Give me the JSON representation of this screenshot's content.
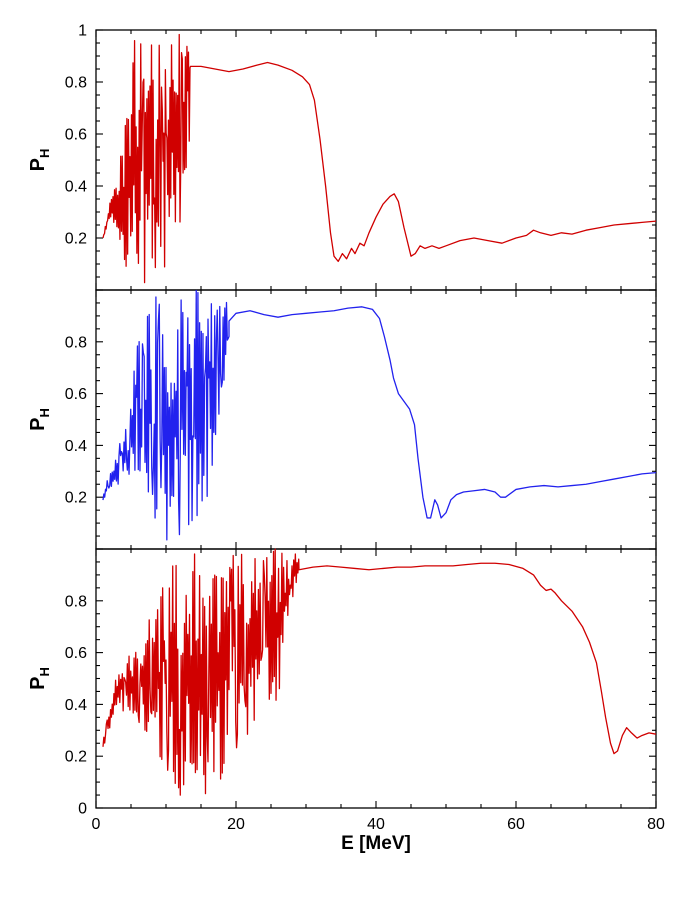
{
  "chart_data": [
    {
      "type": "line",
      "xlabel": "",
      "ylabel": "P",
      "ylabel_sub": "H",
      "xlim": [
        0,
        80
      ],
      "ylim": [
        0,
        1
      ],
      "ytick_labels": [
        "0.2",
        "0.4",
        "0.6",
        "0.8",
        "1"
      ],
      "ytick_values": [
        0.2,
        0.4,
        0.6,
        0.8,
        1.0
      ],
      "series": [
        {
          "color": "#d00000",
          "noisy": {
            "x_start": 1.0,
            "x_end": 13.5,
            "step": 0.11,
            "envelope": [
              [
                1,
                0.2,
                0.2
              ],
              [
                2,
                0.25,
                0.34
              ],
              [
                3,
                0.22,
                0.45
              ],
              [
                4,
                0.12,
                0.6
              ],
              [
                5,
                0.02,
                0.95
              ],
              [
                6,
                0.02,
                0.98
              ],
              [
                8,
                0.03,
                1.0
              ],
              [
                10,
                0.05,
                1.0
              ],
              [
                12,
                0.1,
                1.0
              ],
              [
                13.5,
                0.4,
                1.0
              ]
            ]
          },
          "smooth": [
            [
              1.0,
              0.16
            ],
            [
              2.0,
              0.28
            ],
            [
              13.5,
              0.86
            ],
            [
              15,
              0.86
            ],
            [
              17,
              0.85
            ],
            [
              19,
              0.84
            ],
            [
              21,
              0.85
            ],
            [
              23,
              0.865
            ],
            [
              24.5,
              0.875
            ],
            [
              26,
              0.865
            ],
            [
              28,
              0.845
            ],
            [
              29.5,
              0.82
            ],
            [
              30.5,
              0.79
            ],
            [
              31.2,
              0.73
            ],
            [
              32,
              0.58
            ],
            [
              32.8,
              0.4
            ],
            [
              33.5,
              0.22
            ],
            [
              34,
              0.13
            ],
            [
              34.6,
              0.11
            ],
            [
              35.2,
              0.14
            ],
            [
              35.8,
              0.12
            ],
            [
              36.5,
              0.16
            ],
            [
              37,
              0.14
            ],
            [
              37.7,
              0.18
            ],
            [
              38.3,
              0.17
            ],
            [
              39,
              0.22
            ],
            [
              40,
              0.28
            ],
            [
              41,
              0.33
            ],
            [
              42,
              0.36
            ],
            [
              42.6,
              0.37
            ],
            [
              43.2,
              0.34
            ],
            [
              44,
              0.24
            ],
            [
              45,
              0.13
            ],
            [
              45.6,
              0.14
            ],
            [
              46.3,
              0.17
            ],
            [
              47,
              0.16
            ],
            [
              48,
              0.17
            ],
            [
              49,
              0.16
            ],
            [
              50,
              0.17
            ],
            [
              52,
              0.19
            ],
            [
              54,
              0.2
            ],
            [
              56,
              0.19
            ],
            [
              58,
              0.18
            ],
            [
              60,
              0.2
            ],
            [
              61.5,
              0.21
            ],
            [
              62.5,
              0.23
            ],
            [
              63.5,
              0.22
            ],
            [
              65,
              0.21
            ],
            [
              66.5,
              0.22
            ],
            [
              68,
              0.215
            ],
            [
              70,
              0.23
            ],
            [
              72,
              0.24
            ],
            [
              74,
              0.25
            ],
            [
              76,
              0.255
            ],
            [
              78,
              0.26
            ],
            [
              80,
              0.265
            ]
          ]
        }
      ]
    },
    {
      "type": "line",
      "xlabel": "",
      "ylabel": "P",
      "ylabel_sub": "H",
      "xlim": [
        0,
        80
      ],
      "ylim": [
        0,
        1
      ],
      "ytick_labels": [
        "0.2",
        "0.4",
        "0.6",
        "0.8"
      ],
      "ytick_values": [
        0.2,
        0.4,
        0.6,
        0.8
      ],
      "series": [
        {
          "color": "#2222ee",
          "noisy": {
            "x_start": 1.0,
            "x_end": 19.0,
            "step": 0.12,
            "envelope": [
              [
                1,
                0.18,
                0.22
              ],
              [
                2,
                0.24,
                0.3
              ],
              [
                3,
                0.24,
                0.36
              ],
              [
                4,
                0.26,
                0.48
              ],
              [
                5,
                0.25,
                0.65
              ],
              [
                6,
                0.2,
                0.8
              ],
              [
                7,
                0.1,
                0.9
              ],
              [
                8,
                0.02,
                0.98
              ],
              [
                10,
                0.02,
                0.98
              ],
              [
                12,
                0.05,
                1.0
              ],
              [
                14,
                0.1,
                1.0
              ],
              [
                16,
                0.2,
                1.0
              ],
              [
                18,
                0.5,
                0.98
              ],
              [
                19,
                0.78,
                0.96
              ]
            ]
          },
          "smooth": [
            [
              1.0,
              0.18
            ],
            [
              2.0,
              0.26
            ],
            [
              19.0,
              0.88
            ],
            [
              20,
              0.91
            ],
            [
              22,
              0.92
            ],
            [
              24,
              0.905
            ],
            [
              26,
              0.895
            ],
            [
              28,
              0.905
            ],
            [
              30,
              0.91
            ],
            [
              32,
              0.915
            ],
            [
              34,
              0.92
            ],
            [
              36,
              0.93
            ],
            [
              38,
              0.935
            ],
            [
              39.5,
              0.925
            ],
            [
              40.5,
              0.89
            ],
            [
              41.2,
              0.82
            ],
            [
              42,
              0.73
            ],
            [
              42.5,
              0.66
            ],
            [
              43.2,
              0.6
            ],
            [
              44,
              0.57
            ],
            [
              44.8,
              0.54
            ],
            [
              45.5,
              0.48
            ],
            [
              46,
              0.35
            ],
            [
              46.7,
              0.2
            ],
            [
              47.3,
              0.12
            ],
            [
              47.8,
              0.12
            ],
            [
              48.4,
              0.19
            ],
            [
              48.8,
              0.17
            ],
            [
              49.3,
              0.12
            ],
            [
              50,
              0.14
            ],
            [
              50.7,
              0.19
            ],
            [
              51.5,
              0.21
            ],
            [
              52.5,
              0.22
            ],
            [
              54,
              0.225
            ],
            [
              55.5,
              0.23
            ],
            [
              57,
              0.22
            ],
            [
              57.8,
              0.2
            ],
            [
              58.5,
              0.2
            ],
            [
              60,
              0.23
            ],
            [
              62,
              0.24
            ],
            [
              64,
              0.245
            ],
            [
              66,
              0.24
            ],
            [
              68,
              0.245
            ],
            [
              70,
              0.25
            ],
            [
              72,
              0.26
            ],
            [
              74,
              0.27
            ],
            [
              76,
              0.28
            ],
            [
              78,
              0.29
            ],
            [
              80,
              0.295
            ]
          ]
        }
      ]
    },
    {
      "type": "line",
      "xlabel": "E [MeV]",
      "ylabel": "P",
      "ylabel_sub": "H",
      "xlim": [
        0,
        80
      ],
      "ylim": [
        0,
        1
      ],
      "ytick_labels": [
        "0",
        "0.2",
        "0.4",
        "0.6",
        "0.8"
      ],
      "ytick_values": [
        0.0,
        0.2,
        0.4,
        0.6,
        0.8
      ],
      "xtick_labels": [
        "0",
        "20",
        "40",
        "60",
        "80"
      ],
      "xtick_values": [
        0,
        20,
        40,
        60,
        80
      ],
      "series": [
        {
          "color": "#d00000",
          "noisy": {
            "x_start": 1.0,
            "x_end": 29.0,
            "step": 0.12,
            "envelope": [
              [
                1,
                0.22,
                0.26
              ],
              [
                2,
                0.3,
                0.4
              ],
              [
                3,
                0.36,
                0.52
              ],
              [
                5,
                0.35,
                0.62
              ],
              [
                7,
                0.3,
                0.72
              ],
              [
                9,
                0.2,
                0.82
              ],
              [
                11,
                0.05,
                0.95
              ],
              [
                12,
                0.0,
                1.0
              ],
              [
                14,
                0.0,
                1.0
              ],
              [
                16,
                0.0,
                1.0
              ],
              [
                18,
                0.1,
                1.0
              ],
              [
                20,
                0.2,
                1.0
              ],
              [
                22,
                0.3,
                1.0
              ],
              [
                24,
                0.35,
                1.0
              ],
              [
                26,
                0.4,
                1.0
              ],
              [
                28,
                0.8,
                1.0
              ],
              [
                29,
                0.9,
                0.97
              ]
            ]
          },
          "smooth": [
            [
              1.0,
              0.22
            ],
            [
              2.0,
              0.32
            ],
            [
              29.0,
              0.92
            ],
            [
              31,
              0.93
            ],
            [
              33,
              0.935
            ],
            [
              35,
              0.93
            ],
            [
              37,
              0.925
            ],
            [
              39,
              0.92
            ],
            [
              41,
              0.925
            ],
            [
              43,
              0.93
            ],
            [
              45,
              0.93
            ],
            [
              47,
              0.935
            ],
            [
              49,
              0.935
            ],
            [
              51,
              0.935
            ],
            [
              53,
              0.94
            ],
            [
              55,
              0.945
            ],
            [
              57,
              0.945
            ],
            [
              59,
              0.94
            ],
            [
              61,
              0.925
            ],
            [
              62.5,
              0.9
            ],
            [
              63.5,
              0.86
            ],
            [
              64.3,
              0.84
            ],
            [
              65,
              0.845
            ],
            [
              65.6,
              0.83
            ],
            [
              66.5,
              0.8
            ],
            [
              68,
              0.76
            ],
            [
              69.5,
              0.7
            ],
            [
              70.5,
              0.64
            ],
            [
              71.5,
              0.56
            ],
            [
              72.2,
              0.45
            ],
            [
              72.8,
              0.35
            ],
            [
              73.5,
              0.25
            ],
            [
              74,
              0.21
            ],
            [
              74.5,
              0.22
            ],
            [
              75.2,
              0.28
            ],
            [
              75.8,
              0.31
            ],
            [
              76.5,
              0.29
            ],
            [
              77.3,
              0.27
            ],
            [
              78,
              0.28
            ],
            [
              79,
              0.29
            ],
            [
              80,
              0.285
            ]
          ]
        }
      ]
    }
  ]
}
